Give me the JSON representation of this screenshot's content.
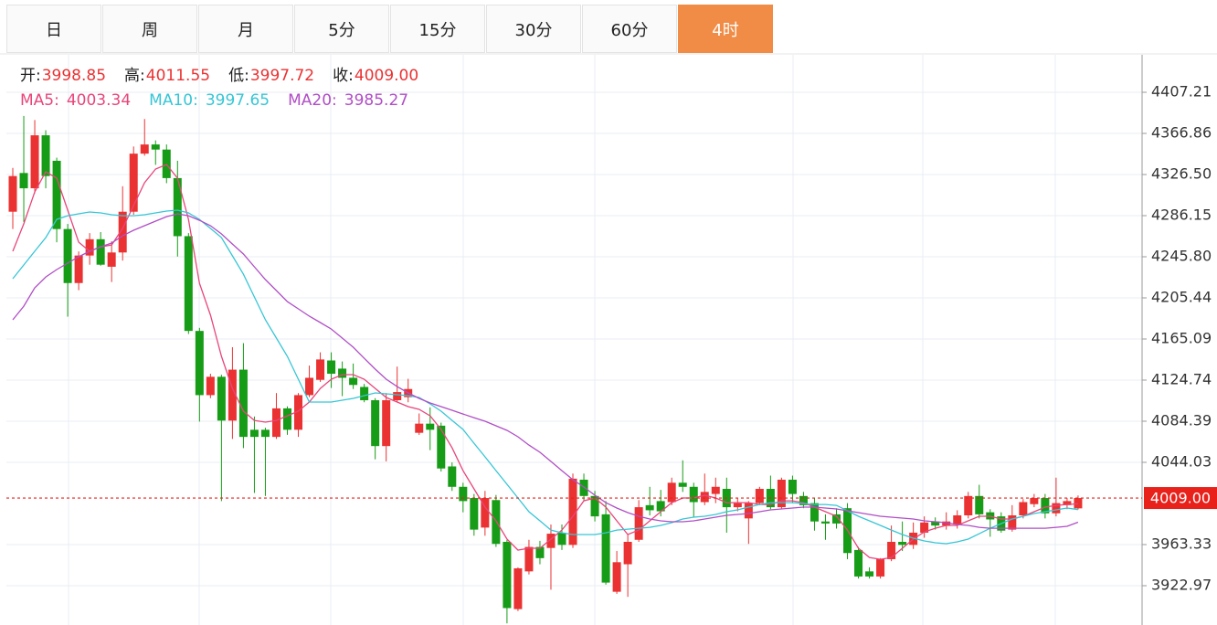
{
  "tabs": [
    "日",
    "周",
    "月",
    "5分",
    "15分",
    "30分",
    "60分",
    "4时"
  ],
  "active_tab": 7,
  "header": {
    "ohlc": [
      {
        "label": "开:",
        "value": "3998.85"
      },
      {
        "label": "高:",
        "value": "4011.55"
      },
      {
        "label": "低:",
        "value": "3997.72"
      },
      {
        "label": "收:",
        "value": "4009.00"
      }
    ]
  },
  "chart_data": {
    "type": "candlestick",
    "up_color": "#eb3232",
    "down_color": "#169c16",
    "ylim": [
      3884.39,
      4443.98
    ],
    "yticks": [
      4407.21,
      4366.86,
      {
        "value": 4326.5,
        "label": "4326.50"
      },
      4286.15,
      {
        "value": 4245.8,
        "label": "4245.80"
      },
      4205.44,
      4165.09,
      4124.74,
      4084.39,
      4044.03,
      3963.33,
      3922.97
    ],
    "grid": true,
    "price_line": {
      "value": 4009,
      "label": "4009.00",
      "color": "#e8211b"
    },
    "open": [
      4290,
      4328,
      4313,
      4365,
      4340,
      4273,
      4220,
      4247,
      4263,
      4236,
      4250,
      4290,
      4347,
      4356,
      4351,
      4323,
      4266,
      4173,
      4110,
      4128,
      4085,
      4135,
      4076,
      4076,
      4069,
      4097,
      4076,
      4110,
      4125,
      4144,
      4136,
      4127,
      4118,
      4105,
      4060,
      4105,
      4108,
      4073,
      4082,
      4080,
      4040,
      4020,
      4009,
      3980,
      4007,
      3966,
      3900,
      3937,
      3961,
      3960,
      3975,
      3963,
      4027,
      4011,
      3993,
      3917,
      3944,
      3968,
      4002,
      4006,
      4005,
      4024,
      4020,
      4005,
      4013,
      4018,
      4000,
      3989,
      4004,
      4018,
      4000,
      4027,
      4011,
      4004,
      3986,
      3993,
      3999,
      3958,
      3937,
      3932,
      3949,
      3966,
      3963,
      3975,
      3986,
      3982,
      3983,
      3992,
      4011,
      3995,
      3991,
      3978,
      3992,
      4003,
      4009,
      3994,
      4002,
      3998.85
    ],
    "high": [
      4333,
      4384,
      4380,
      4370,
      4343,
      4278,
      4251,
      4269,
      4270,
      4261,
      4315,
      4354,
      4381,
      4360,
      4356,
      4340,
      4269,
      4176,
      4131,
      4130,
      4157,
      4161,
      4089,
      4078,
      4112,
      4099,
      4112,
      4139,
      4152,
      4152,
      4143,
      4141,
      4121,
      4107,
      4112,
      4138,
      4126,
      4092,
      4098,
      4083,
      4044,
      4024,
      4013,
      4016,
      4012,
      3968,
      3941,
      3968,
      3967,
      3983,
      3983,
      4033,
      4033,
      4016,
      4006,
      3957,
      3974,
      4007,
      4020,
      4017,
      4029,
      4046,
      4024,
      4033,
      4029,
      4029,
      4009,
      4006,
      4020,
      4031,
      4029,
      4031,
      4015,
      4009,
      3993,
      3999,
      4004,
      3961,
      3941,
      3950,
      3982,
      3986,
      3985,
      3991,
      3990,
      3995,
      3997,
      4015,
      4022,
      3998,
      3995,
      4002,
      4008,
      4013,
      4013,
      4029,
      4009,
      4011.55
    ],
    "low": [
      4273,
      4280,
      4308,
      4313,
      4260,
      4187,
      4213,
      4238,
      4237,
      4221,
      4242,
      4287,
      4345,
      4336,
      4318,
      4246,
      4170,
      4084,
      4107,
      4006,
      4067,
      4058,
      4014,
      4011,
      4067,
      4071,
      4069,
      4108,
      4123,
      4117,
      4109,
      4116,
      4103,
      4047,
      4045,
      4103,
      4103,
      4071,
      4056,
      4035,
      4016,
      3995,
      3972,
      3972,
      3961,
      3886,
      3898,
      3934,
      3944,
      3919,
      3958,
      3960,
      4006,
      3986,
      3924,
      3915,
      3912,
      3966,
      3992,
      3991,
      4002,
      4015,
      3990,
      4002,
      4004,
      3975,
      3996,
      3964,
      4002,
      3998,
      3998,
      4004,
      3999,
      3977,
      3968,
      3979,
      3949,
      3930,
      3930,
      3930,
      3947,
      3957,
      3959,
      3970,
      3978,
      3978,
      3979,
      3989,
      3989,
      3971,
      3975,
      3976,
      3989,
      4000,
      3989,
      3991,
      3998,
      3997.72
    ],
    "close": [
      4325,
      4313,
      4365,
      4325,
      4273,
      4220,
      4247,
      4263,
      4238,
      4250,
      4290,
      4347,
      4356,
      4351,
      4323,
      4266,
      4173,
      4110,
      4128,
      4085,
      4135,
      4069,
      4069,
      4069,
      4097,
      4076,
      4110,
      4127,
      4145,
      4131,
      4127,
      4120,
      4105,
      4060,
      4105,
      4113,
      4116,
      4082,
      4076,
      4038,
      4020,
      4006,
      3978,
      4009,
      3964,
      3901,
      3940,
      3961,
      3950,
      3974,
      3963,
      4028,
      4011,
      3991,
      3926,
      3946,
      3966,
      4000,
      3997,
      3996,
      4024,
      4020,
      4005,
      4015,
      4020,
      4000,
      4004,
      4004,
      4018,
      4000,
      4027,
      4013,
      4002,
      3986,
      3984,
      3984,
      3955,
      3932,
      3932,
      3949,
      3966,
      3963,
      3975,
      3985,
      3982,
      3986,
      3992,
      4011,
      3993,
      3988,
      3977,
      3992,
      4005,
      4009,
      3994,
      4004,
      4006,
      4009
    ],
    "series": [
      {
        "name": "MA5:",
        "legend_value": "4003.34",
        "color": "#e8457a",
        "values": [
          4251.2,
          4278.1,
          4309.4,
          4329.2,
          4322.9,
          4291.5,
          4260.1,
          4251.2,
          4255.6,
          4257.4,
          4273.6,
          4296.0,
          4318.4,
          4331.9,
          4336.4,
          4322.9,
          4282.5,
          4219.8,
          4188.4,
          4148.0,
          4116.6,
          4094.2,
          4085.2,
          4083.5,
          4085.2,
          4089.7,
          4094.2,
          4103.2,
          4116.6,
          4125.6,
          4130.1,
          4130.1,
          4125.6,
          4116.6,
          4107.7,
          4103.2,
          4098.7,
          4096.0,
          4089.7,
          4076.3,
          4058.3,
          4035.9,
          4018.0,
          4000.1,
          3986.6,
          3968.7,
          3957.9,
          3959.7,
          3959.7,
          3968.7,
          3977.6,
          3991.1,
          4006.3,
          4009.0,
          4000.1,
          3986.6,
          3973.2,
          3977.6,
          3986.6,
          3995.6,
          4004.5,
          4009.0,
          4009.0,
          4011.7,
          4009.0,
          4004.5,
          4004.5,
          4004.5,
          4002.7,
          4002.7,
          4006.3,
          4006.3,
          4004.5,
          4000.1,
          3995.6,
          3991.1,
          3977.6,
          3959.7,
          3950.7,
          3948.9,
          3950.7,
          3959.7,
          3968.7,
          3975.8,
          3979.4,
          3982.1,
          3982.1,
          3986.6,
          3991.1,
          3991.1,
          3988.4,
          3988.4,
          3991.1,
          3995.6,
          4000.1,
          4001.8,
          4002.7,
          4003.34
        ]
      },
      {
        "name": "MA10:",
        "legend_value": "3997.65",
        "color": "#36c6d6",
        "values": [
          4224.3,
          4237.7,
          4251.2,
          4264.6,
          4282.5,
          4286.1,
          4287.9,
          4289.7,
          4288.8,
          4287.0,
          4286.1,
          4286.1,
          4287.0,
          4288.8,
          4290.6,
          4291.5,
          4288.8,
          4282.5,
          4273.6,
          4264.6,
          4246.7,
          4228.7,
          4206.3,
          4183.9,
          4166.0,
          4148.0,
          4125.6,
          4103.2,
          4103.2,
          4103.2,
          4105.0,
          4106.8,
          4109.5,
          4112.2,
          4111.3,
          4110.4,
          4109.5,
          4107.7,
          4101.4,
          4094.2,
          4085.2,
          4076.3,
          4062.8,
          4049.4,
          4035.9,
          4022.5,
          4009.0,
          3995.6,
          3986.6,
          3977.6,
          3974.9,
          3973.2,
          3973.2,
          3973.2,
          3974.9,
          3977.6,
          3978.5,
          3979.4,
          3980.3,
          3982.1,
          3984.8,
          3988.4,
          3990.2,
          3991.1,
          3992.9,
          3995.6,
          3997.4,
          4000.1,
          4002.7,
          4004.5,
          4004.5,
          4004.5,
          4003.6,
          4002.7,
          4002.7,
          4001.8,
          3996.5,
          3991.1,
          3986.6,
          3982.1,
          3977.6,
          3973.2,
          3969.6,
          3966.9,
          3965.1,
          3964.2,
          3966.0,
          3968.7,
          3974.0,
          3979.4,
          3983.9,
          3988.4,
          3991.1,
          3993.8,
          3995.6,
          3997.4,
          3999.2,
          3997.65
        ]
      },
      {
        "name": "MA20:",
        "legend_value": "3985.27",
        "color": "#b04ec6",
        "values": [
          4183.9,
          4197.3,
          4215.3,
          4226.0,
          4233.2,
          4239.5,
          4245.8,
          4251.2,
          4255.6,
          4259.2,
          4266.4,
          4271.8,
          4276.3,
          4280.8,
          4285.2,
          4287.9,
          4286.1,
          4281.6,
          4276.3,
          4268.2,
          4258.3,
          4248.5,
          4235.9,
          4223.4,
          4212.6,
          4201.8,
          4194.7,
          4187.5,
          4181.2,
          4174.9,
          4166.0,
          4157.0,
          4146.2,
          4135.5,
          4125.6,
          4118.4,
          4112.2,
          4106.8,
          4102.3,
          4098.7,
          4095.1,
          4091.5,
          4087.9,
          4084.4,
          4079.9,
          4075.4,
          4069.1,
          4061.0,
          4053.9,
          4044.9,
          4035.9,
          4027.0,
          4019.8,
          4011.7,
          4004.5,
          3999.2,
          3994.7,
          3991.1,
          3988.4,
          3986.6,
          3985.7,
          3985.7,
          3986.6,
          3988.4,
          3990.2,
          3992.0,
          3992.9,
          3993.8,
          3995.6,
          3997.4,
          3998.3,
          3999.2,
          4000.1,
          4000.1,
          3999.2,
          3998.3,
          3996.5,
          3994.7,
          3992.9,
          3991.1,
          3990.2,
          3989.3,
          3988.4,
          3986.6,
          3985.7,
          3984.8,
          3983.0,
          3982.1,
          3980.3,
          3979.4,
          3979.4,
          3979.4,
          3979.4,
          3979.4,
          3979.4,
          3980.3,
          3981.2,
          3985.27
        ]
      }
    ]
  }
}
